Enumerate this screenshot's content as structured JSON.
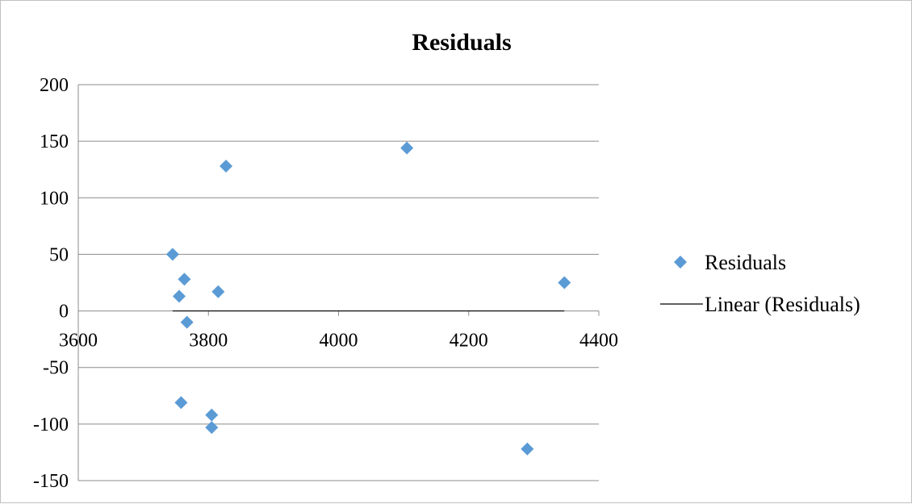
{
  "chart_data": {
    "type": "scatter",
    "title": "Residuals",
    "xlabel": "",
    "ylabel": "",
    "xlim": [
      3600,
      4400
    ],
    "ylim": [
      -150,
      200
    ],
    "x_ticks": [
      "3600",
      "3800",
      "4000",
      "4200",
      "4400"
    ],
    "y_ticks": [
      "200",
      "150",
      "100",
      "50",
      "0",
      "-50",
      "-100",
      "-150"
    ],
    "grid": "horizontal",
    "legend_position": "right",
    "series": [
      {
        "name": "Residuals",
        "kind": "scatter",
        "color": "#5b9bd5",
        "marker": "diamond",
        "points": [
          {
            "x": 3745,
            "y": 50
          },
          {
            "x": 3755,
            "y": 13
          },
          {
            "x": 3763,
            "y": 28
          },
          {
            "x": 3767,
            "y": -10
          },
          {
            "x": 3758,
            "y": -81
          },
          {
            "x": 3805,
            "y": -92
          },
          {
            "x": 3805,
            "y": -103
          },
          {
            "x": 3815,
            "y": 17
          },
          {
            "x": 3827,
            "y": 128
          },
          {
            "x": 4105,
            "y": 144
          },
          {
            "x": 4290,
            "y": -122
          },
          {
            "x": 4347,
            "y": 25
          }
        ]
      },
      {
        "name": "Linear (Residuals)",
        "kind": "line",
        "color": "#000000",
        "points": [
          {
            "x": 3745,
            "y": 0
          },
          {
            "x": 4347,
            "y": 0
          }
        ]
      }
    ]
  }
}
